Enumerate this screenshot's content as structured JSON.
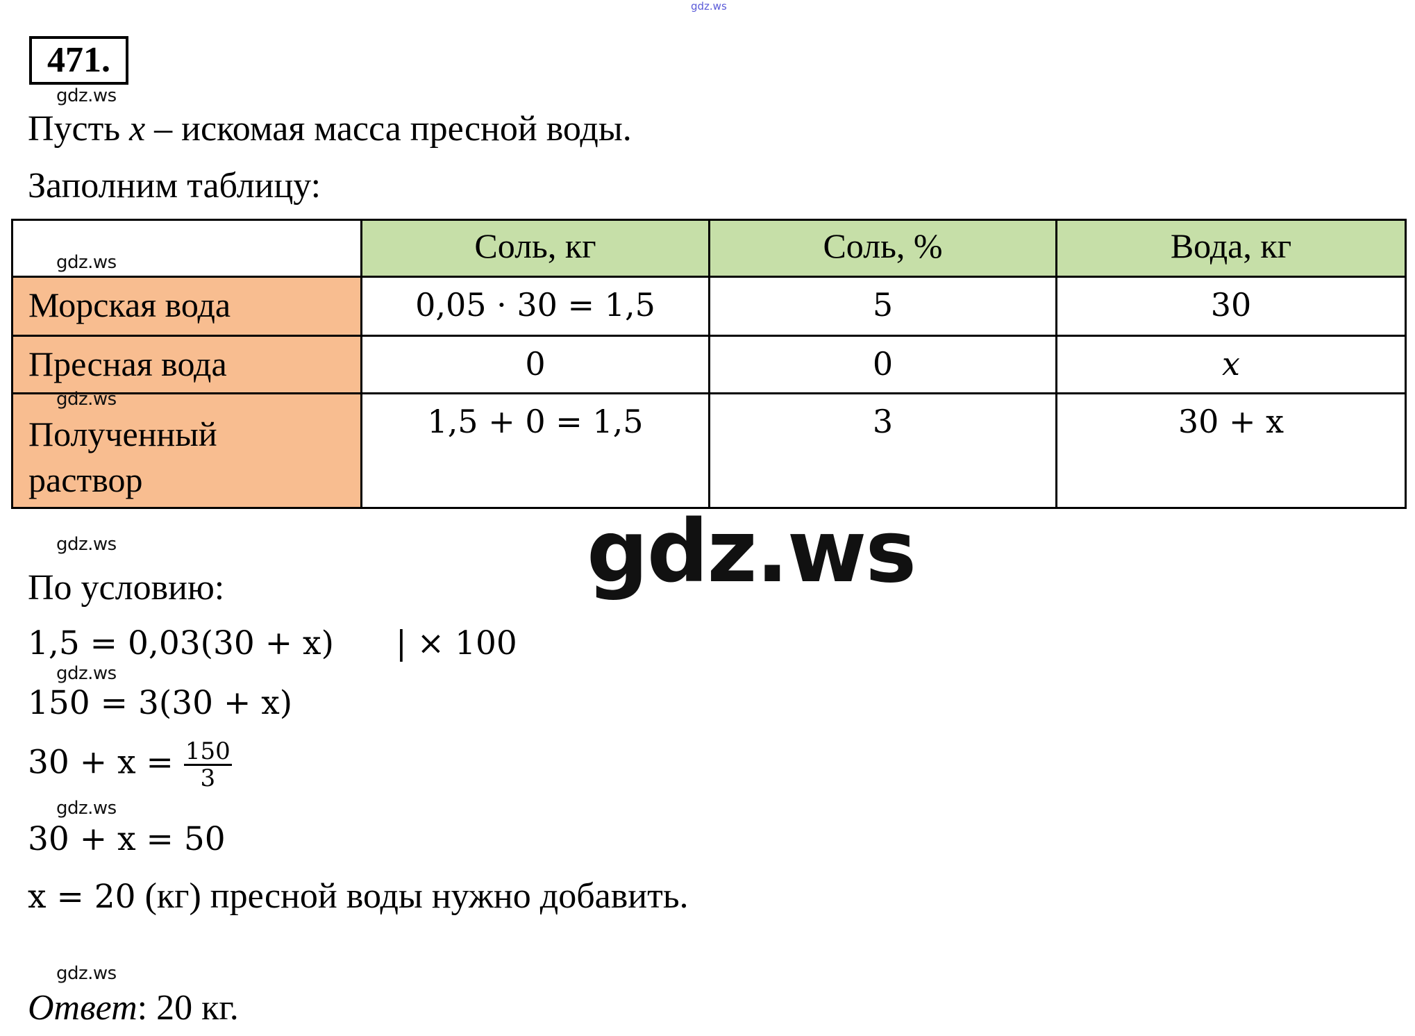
{
  "watermark": {
    "small": "gdz.ws",
    "top": "gdz.ws",
    "big": "gdz.ws"
  },
  "problem_number": "471.",
  "intro": {
    "line1_pre": "Пусть ",
    "var": "x",
    "line1_post": " – искомая масса пресной воды.",
    "line2": "Заполним таблицу:"
  },
  "table": {
    "headers": [
      "",
      "Соль, кг",
      "Соль, %",
      "Вода, кг"
    ],
    "rows": [
      {
        "label": "Морская вода",
        "cells": [
          "0,05 · 30 = 1,5",
          "5",
          "30"
        ]
      },
      {
        "label": "Пресная вода",
        "cells": [
          "0",
          "0",
          "x"
        ]
      },
      {
        "label_line1": "Полученный",
        "label_line2": "раствор",
        "cells": [
          "1,5 + 0 = 1,5",
          "3",
          "30 + x"
        ]
      }
    ],
    "colors": {
      "header": "#c6dfa8",
      "row_label": "#f8bd90"
    }
  },
  "condition": "По условию:",
  "equations": {
    "eq1": "1,5 = 0,03(30 + x)",
    "eq1_note": "| × 100",
    "eq2": "150 = 3(30 + x)",
    "eq3_left": "30 + x = ",
    "eq3_num": "150",
    "eq3_den": "3",
    "eq4": "30 + x = 50",
    "eq5_math": "x = 20",
    "eq5_text": " (кг) пресной воды нужно добавить."
  },
  "answer": {
    "label": "Ответ",
    "value": ": 20 кг."
  }
}
